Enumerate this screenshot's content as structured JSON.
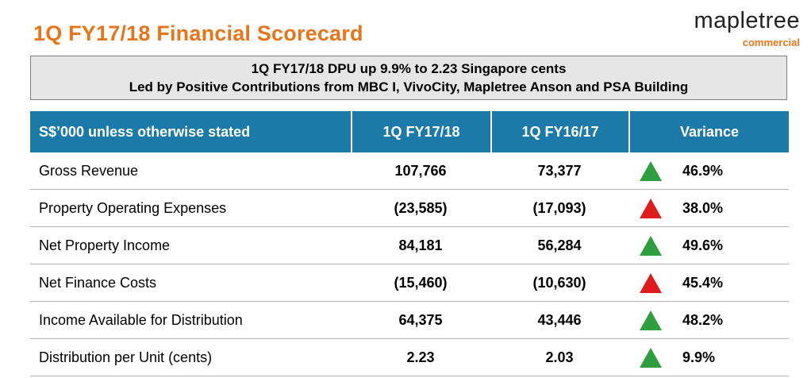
{
  "title": "1Q FY17/18 Financial Scorecard",
  "logo": {
    "name": "mapletree",
    "sub": "commercial"
  },
  "banner": {
    "line1": "1Q FY17/18 DPU up 9.9% to 2.23 Singapore cents",
    "line2": "Led by Positive Contributions from MBC I, VivoCity, Mapletree Anson and PSA Building"
  },
  "table": {
    "headers": [
      "S$’000 unless otherwise stated",
      "1Q FY17/18",
      "1Q FY16/17",
      "Variance"
    ],
    "rows": [
      {
        "label": "Gross Revenue",
        "current": "107,766",
        "previous": "73,377",
        "variance": "46.9%",
        "indicator": "up-green-icon"
      },
      {
        "label": "Property Operating Expenses",
        "current": "(23,585)",
        "previous": "(17,093)",
        "variance": "38.0%",
        "indicator": "up-red-icon"
      },
      {
        "label": "Net Property Income",
        "current": "84,181",
        "previous": "56,284",
        "variance": "49.6%",
        "indicator": "up-green-icon"
      },
      {
        "label": "Net Finance Costs",
        "current": "(15,460)",
        "previous": "(10,630)",
        "variance": "45.4%",
        "indicator": "up-red-icon"
      },
      {
        "label": "Income Available for Distribution",
        "current": "64,375",
        "previous": "43,446",
        "variance": "48.2%",
        "indicator": "up-green-icon"
      },
      {
        "label": "Distribution per Unit (cents)",
        "current": "2.23",
        "previous": "2.03",
        "variance": "9.9%",
        "indicator": "up-green-icon"
      }
    ]
  },
  "colors": {
    "accent": "#E8751A",
    "header_bg": "#1C7AA8",
    "up_good": "#2E9E3E",
    "up_bad": "#E01B1B",
    "banner_bg": "#E6E6E6"
  }
}
